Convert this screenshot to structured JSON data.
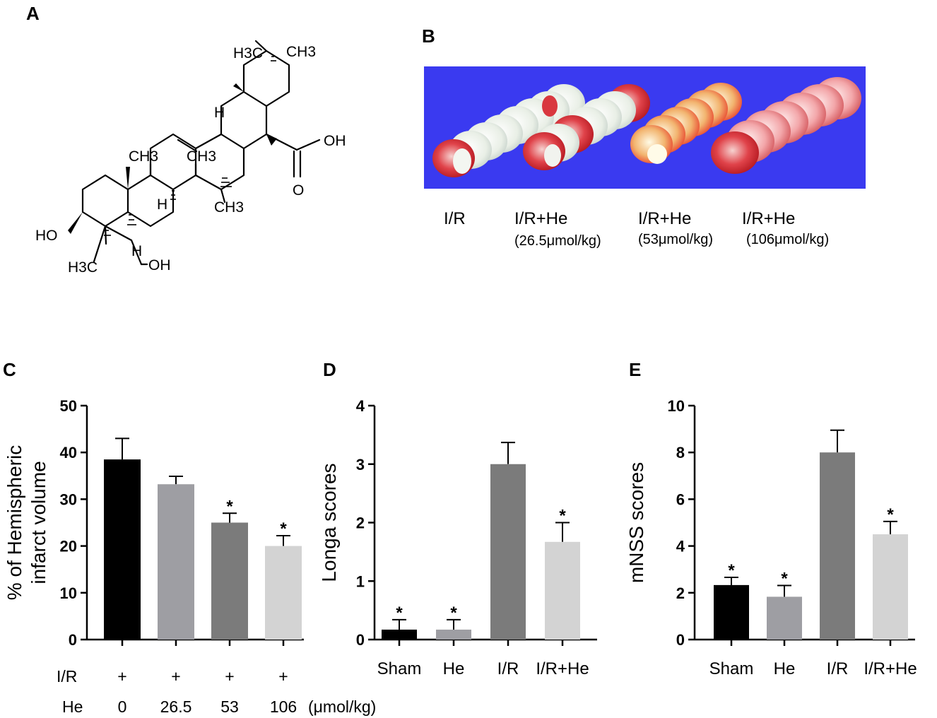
{
  "panels": {
    "a": "A",
    "b": "B",
    "c": "C",
    "d": "D",
    "e": "E"
  },
  "structure": {
    "labels": {
      "h3c_top": "H3C",
      "ch3_top": "CH3",
      "h_top": "H",
      "oh_acid": "OH",
      "o_acid": "O",
      "ch3_left": "CH3",
      "ch3_mid": "CH3",
      "h_mid": "H",
      "ch3_low": "CH3",
      "ho": "HO",
      "h_low": "H",
      "h3c_bottom": "H3C",
      "oh_bottom": "OH"
    }
  },
  "photo": {
    "background_color": "#3a3af0",
    "groups": [
      {
        "label": "I/R",
        "dose": ""
      },
      {
        "label": "I/R+He",
        "dose": "(26.5μmol/kg)"
      },
      {
        "label": "I/R+He",
        "dose": "(53μmol/kg)"
      },
      {
        "label": "I/R+He",
        "dose": "(106μmol/kg)"
      }
    ]
  },
  "chart_data": [
    {
      "panel": "C",
      "type": "bar",
      "ylabel_lines": [
        "% of Hemispheric",
        "infarct volume"
      ],
      "ylim": [
        0,
        50
      ],
      "yticks": [
        0,
        10,
        20,
        30,
        40,
        50
      ],
      "categories": [
        "0",
        "26.5",
        "53",
        "106"
      ],
      "values": [
        38.5,
        33.2,
        25.0,
        20.0
      ],
      "errors": [
        4.5,
        1.7,
        2.0,
        2.2
      ],
      "significant": [
        false,
        false,
        true,
        true
      ],
      "colors": [
        "#000000",
        "#9e9ea3",
        "#7b7b7b",
        "#d3d3d3"
      ],
      "ir_row_label": "I/R",
      "ir_marks": [
        "+",
        "+",
        "+",
        "+"
      ],
      "he_row_label": "He",
      "unit": "(μmol/kg)"
    },
    {
      "panel": "D",
      "type": "bar",
      "ylabel": "Longa scores",
      "ylim": [
        0,
        4
      ],
      "yticks": [
        0,
        1,
        2,
        3,
        4
      ],
      "categories": [
        "Sham",
        "He",
        "I/R",
        "I/R+He"
      ],
      "values": [
        0.17,
        0.17,
        3.0,
        1.67
      ],
      "errors": [
        0.17,
        0.17,
        0.37,
        0.33
      ],
      "significant": [
        true,
        true,
        false,
        true
      ],
      "colors": [
        "#000000",
        "#9e9ea3",
        "#7b7b7b",
        "#d3d3d3"
      ]
    },
    {
      "panel": "E",
      "type": "bar",
      "ylabel": "mNSS scores",
      "ylim": [
        0,
        10
      ],
      "yticks": [
        0,
        2,
        4,
        6,
        8,
        10
      ],
      "categories": [
        "Sham",
        "He",
        "I/R",
        "I/R+He"
      ],
      "values": [
        2.33,
        1.83,
        8.0,
        4.5
      ],
      "errors": [
        0.33,
        0.48,
        0.95,
        0.55
      ],
      "significant": [
        true,
        true,
        false,
        true
      ],
      "colors": [
        "#000000",
        "#9e9ea3",
        "#7b7b7b",
        "#d3d3d3"
      ]
    }
  ]
}
